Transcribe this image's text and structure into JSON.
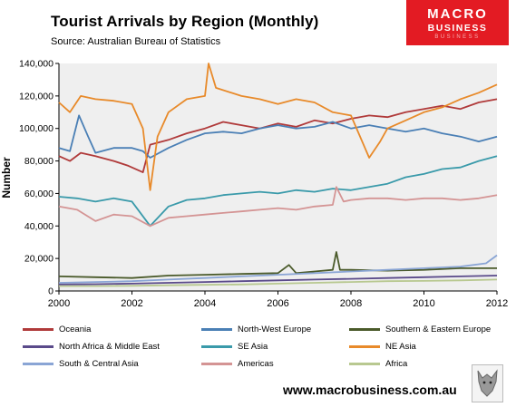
{
  "header": {
    "title": "Tourist Arrivals by Region (Monthly)",
    "source": "Source: Australian Bureau of Statistics"
  },
  "logo": {
    "line1": "MACRO",
    "line2": "BUSINESS",
    "line3": "BUSINESS"
  },
  "footer": {
    "url": "www.macrobusiness.com.au"
  },
  "chart_data": {
    "type": "line",
    "title": "Tourist Arrivals by Region (Monthly)",
    "ylabel": "Number",
    "xlabel": "",
    "xlim": [
      2000,
      2012
    ],
    "ylim": [
      0,
      140000
    ],
    "xticks": [
      2000,
      2002,
      2004,
      2006,
      2008,
      2010,
      2012
    ],
    "yticks": [
      0,
      20000,
      40000,
      60000,
      80000,
      100000,
      120000,
      140000
    ],
    "ytick_labels": [
      "0",
      "20,000",
      "40,000",
      "60,000",
      "80,000",
      "100,000",
      "120,000",
      "140,000"
    ],
    "grid": false,
    "legend_position": "bottom",
    "series": [
      {
        "name": "Oceania",
        "color": "#b03a3a",
        "points": [
          [
            2000.0,
            83000
          ],
          [
            2000.3,
            80000
          ],
          [
            2000.6,
            85000
          ],
          [
            2001.0,
            83000
          ],
          [
            2001.5,
            80000
          ],
          [
            2001.9,
            77000
          ],
          [
            2002.3,
            73000
          ],
          [
            2002.5,
            90000
          ],
          [
            2003.0,
            93000
          ],
          [
            2003.5,
            97000
          ],
          [
            2004.0,
            100000
          ],
          [
            2004.5,
            104000
          ],
          [
            2005.0,
            102000
          ],
          [
            2005.5,
            100000
          ],
          [
            2006.0,
            103000
          ],
          [
            2006.5,
            101000
          ],
          [
            2007.0,
            105000
          ],
          [
            2007.5,
            103000
          ],
          [
            2008.0,
            106000
          ],
          [
            2008.5,
            108000
          ],
          [
            2009.0,
            107000
          ],
          [
            2009.5,
            110000
          ],
          [
            2010.0,
            112000
          ],
          [
            2010.5,
            114000
          ],
          [
            2011.0,
            112000
          ],
          [
            2011.5,
            116000
          ],
          [
            2012.0,
            118000
          ]
        ]
      },
      {
        "name": "North-West Europe",
        "color": "#4a7fb5",
        "points": [
          [
            2000.0,
            88000
          ],
          [
            2000.3,
            86000
          ],
          [
            2000.55,
            108000
          ],
          [
            2000.8,
            95000
          ],
          [
            2001.0,
            85000
          ],
          [
            2001.5,
            88000
          ],
          [
            2002.0,
            88000
          ],
          [
            2002.3,
            86000
          ],
          [
            2002.5,
            82000
          ],
          [
            2003.0,
            88000
          ],
          [
            2003.5,
            93000
          ],
          [
            2004.0,
            97000
          ],
          [
            2004.5,
            98000
          ],
          [
            2005.0,
            97000
          ],
          [
            2005.5,
            100000
          ],
          [
            2006.0,
            102000
          ],
          [
            2006.5,
            100000
          ],
          [
            2007.0,
            101000
          ],
          [
            2007.5,
            104000
          ],
          [
            2008.0,
            100000
          ],
          [
            2008.5,
            102000
          ],
          [
            2009.0,
            100000
          ],
          [
            2009.5,
            98000
          ],
          [
            2010.0,
            100000
          ],
          [
            2010.5,
            97000
          ],
          [
            2011.0,
            95000
          ],
          [
            2011.5,
            92000
          ],
          [
            2012.0,
            95000
          ]
        ]
      },
      {
        "name": "Southern & Eastern Europe",
        "color": "#4a5a2a",
        "points": [
          [
            2000.0,
            9000
          ],
          [
            2001.0,
            8500
          ],
          [
            2002.0,
            8000
          ],
          [
            2003.0,
            9500
          ],
          [
            2004.0,
            10000
          ],
          [
            2005.0,
            10500
          ],
          [
            2006.0,
            11000
          ],
          [
            2006.3,
            16000
          ],
          [
            2006.5,
            11000
          ],
          [
            2007.0,
            12000
          ],
          [
            2007.5,
            13000
          ],
          [
            2007.6,
            24000
          ],
          [
            2007.7,
            13000
          ],
          [
            2008.0,
            13000
          ],
          [
            2009.0,
            12500
          ],
          [
            2010.0,
            13000
          ],
          [
            2011.0,
            14000
          ],
          [
            2012.0,
            14000
          ]
        ]
      },
      {
        "name": "North Africa & Middle East",
        "color": "#5a4a8a",
        "points": [
          [
            2000.0,
            4000
          ],
          [
            2001.0,
            4200
          ],
          [
            2002.0,
            4500
          ],
          [
            2003.0,
            5000
          ],
          [
            2004.0,
            5500
          ],
          [
            2005.0,
            6000
          ],
          [
            2006.0,
            6500
          ],
          [
            2007.0,
            7000
          ],
          [
            2008.0,
            7500
          ],
          [
            2009.0,
            8000
          ],
          [
            2010.0,
            8500
          ],
          [
            2011.0,
            9000
          ],
          [
            2012.0,
            9500
          ]
        ]
      },
      {
        "name": "SE Asia",
        "color": "#3a9aaa",
        "points": [
          [
            2000.0,
            58000
          ],
          [
            2000.5,
            57000
          ],
          [
            2001.0,
            55000
          ],
          [
            2001.5,
            57000
          ],
          [
            2002.0,
            55000
          ],
          [
            2002.5,
            40000
          ],
          [
            2003.0,
            52000
          ],
          [
            2003.5,
            56000
          ],
          [
            2004.0,
            57000
          ],
          [
            2004.5,
            59000
          ],
          [
            2005.0,
            60000
          ],
          [
            2005.5,
            61000
          ],
          [
            2006.0,
            60000
          ],
          [
            2006.5,
            62000
          ],
          [
            2007.0,
            61000
          ],
          [
            2007.5,
            63000
          ],
          [
            2008.0,
            62000
          ],
          [
            2008.5,
            64000
          ],
          [
            2009.0,
            66000
          ],
          [
            2009.5,
            70000
          ],
          [
            2010.0,
            72000
          ],
          [
            2010.5,
            75000
          ],
          [
            2011.0,
            76000
          ],
          [
            2011.5,
            80000
          ],
          [
            2012.0,
            83000
          ]
        ]
      },
      {
        "name": "NE Asia",
        "color": "#e88a2a",
        "points": [
          [
            2000.0,
            116000
          ],
          [
            2000.3,
            110000
          ],
          [
            2000.6,
            120000
          ],
          [
            2001.0,
            118000
          ],
          [
            2001.5,
            117000
          ],
          [
            2002.0,
            115000
          ],
          [
            2002.3,
            100000
          ],
          [
            2002.5,
            62000
          ],
          [
            2002.7,
            95000
          ],
          [
            2003.0,
            110000
          ],
          [
            2003.5,
            118000
          ],
          [
            2004.0,
            120000
          ],
          [
            2004.1,
            140000
          ],
          [
            2004.3,
            125000
          ],
          [
            2005.0,
            120000
          ],
          [
            2005.5,
            118000
          ],
          [
            2006.0,
            115000
          ],
          [
            2006.5,
            118000
          ],
          [
            2007.0,
            116000
          ],
          [
            2007.5,
            110000
          ],
          [
            2008.0,
            108000
          ],
          [
            2008.5,
            82000
          ],
          [
            2008.8,
            92000
          ],
          [
            2009.0,
            100000
          ],
          [
            2009.5,
            105000
          ],
          [
            2010.0,
            110000
          ],
          [
            2010.5,
            113000
          ],
          [
            2011.0,
            118000
          ],
          [
            2011.5,
            122000
          ],
          [
            2012.0,
            127000
          ]
        ]
      },
      {
        "name": "South & Central Asia",
        "color": "#8aa5d5",
        "points": [
          [
            2000.0,
            5000
          ],
          [
            2001.0,
            5500
          ],
          [
            2002.0,
            6000
          ],
          [
            2003.0,
            7000
          ],
          [
            2004.0,
            8000
          ],
          [
            2005.0,
            9000
          ],
          [
            2006.0,
            10000
          ],
          [
            2007.0,
            11000
          ],
          [
            2008.0,
            12000
          ],
          [
            2009.0,
            13000
          ],
          [
            2010.0,
            14000
          ],
          [
            2011.0,
            15000
          ],
          [
            2011.7,
            17000
          ],
          [
            2012.0,
            22000
          ]
        ]
      },
      {
        "name": "Americas",
        "color": "#d49494",
        "points": [
          [
            2000.0,
            52000
          ],
          [
            2000.5,
            50000
          ],
          [
            2001.0,
            43000
          ],
          [
            2001.5,
            47000
          ],
          [
            2002.0,
            46000
          ],
          [
            2002.5,
            40000
          ],
          [
            2003.0,
            45000
          ],
          [
            2003.5,
            46000
          ],
          [
            2004.0,
            47000
          ],
          [
            2004.5,
            48000
          ],
          [
            2005.0,
            49000
          ],
          [
            2005.5,
            50000
          ],
          [
            2006.0,
            51000
          ],
          [
            2006.5,
            50000
          ],
          [
            2007.0,
            52000
          ],
          [
            2007.5,
            53000
          ],
          [
            2007.6,
            64000
          ],
          [
            2007.8,
            55000
          ],
          [
            2008.0,
            56000
          ],
          [
            2008.5,
            57000
          ],
          [
            2009.0,
            57000
          ],
          [
            2009.5,
            56000
          ],
          [
            2010.0,
            57000
          ],
          [
            2010.5,
            57000
          ],
          [
            2011.0,
            56000
          ],
          [
            2011.5,
            57000
          ],
          [
            2012.0,
            59000
          ]
        ]
      },
      {
        "name": "Africa",
        "color": "#b8c890",
        "points": [
          [
            2000.0,
            3000
          ],
          [
            2001.0,
            3000
          ],
          [
            2002.0,
            3200
          ],
          [
            2003.0,
            3500
          ],
          [
            2004.0,
            3800
          ],
          [
            2005.0,
            4000
          ],
          [
            2006.0,
            4500
          ],
          [
            2007.0,
            5000
          ],
          [
            2008.0,
            5500
          ],
          [
            2009.0,
            6000
          ],
          [
            2010.0,
            6200
          ],
          [
            2011.0,
            6500
          ],
          [
            2012.0,
            7000
          ]
        ]
      }
    ]
  }
}
